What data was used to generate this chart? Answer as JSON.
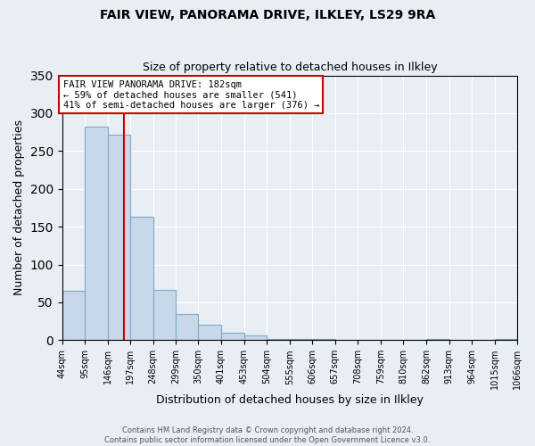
{
  "title": "FAIR VIEW, PANORAMA DRIVE, ILKLEY, LS29 9RA",
  "subtitle": "Size of property relative to detached houses in Ilkley",
  "xlabel": "Distribution of detached houses by size in Ilkley",
  "ylabel": "Number of detached properties",
  "bar_edges": [
    44,
    95,
    146,
    197,
    248,
    299,
    350,
    401,
    453,
    504,
    555,
    606,
    657,
    708,
    759,
    810,
    862,
    913,
    964,
    1015,
    1066
  ],
  "bar_heights": [
    65,
    282,
    272,
    163,
    67,
    35,
    20,
    10,
    6,
    2,
    1,
    1,
    0,
    0,
    0,
    0,
    2,
    0,
    0,
    2
  ],
  "bar_color": "#c8d8ea",
  "bar_edge_color": "#7aaac8",
  "vline_x": 182,
  "vline_color": "#cc0000",
  "ylim": [
    0,
    350
  ],
  "yticks": [
    0,
    50,
    100,
    150,
    200,
    250,
    300,
    350
  ],
  "annotation_text": "FAIR VIEW PANORAMA DRIVE: 182sqm\n← 59% of detached houses are smaller (541)\n41% of semi-detached houses are larger (376) →",
  "annotation_box_color": "#ffffff",
  "annotation_box_edge": "#cc0000",
  "footer_line1": "Contains HM Land Registry data © Crown copyright and database right 2024.",
  "footer_line2": "Contains public sector information licensed under the Open Government Licence v3.0.",
  "tick_labels": [
    "44sqm",
    "95sqm",
    "146sqm",
    "197sqm",
    "248sqm",
    "299sqm",
    "350sqm",
    "401sqm",
    "453sqm",
    "504sqm",
    "555sqm",
    "606sqm",
    "657sqm",
    "708sqm",
    "759sqm",
    "810sqm",
    "862sqm",
    "913sqm",
    "964sqm",
    "1015sqm",
    "1066sqm"
  ],
  "background_color": "#e8eef4"
}
